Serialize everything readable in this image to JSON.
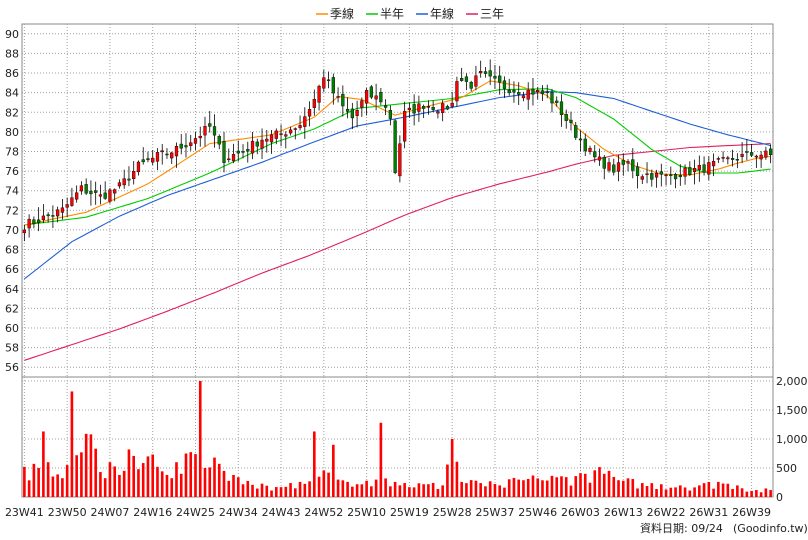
{
  "colors": {
    "up": "#ff0000",
    "down": "#008000",
    "wick": "#000000",
    "ma_quarter": "#ff8c00",
    "ma_half": "#00cc00",
    "ma_year": "#1f5fd6",
    "ma_3year": "#e0205a",
    "volume": "#ff0000",
    "grid": "#a0a0a0",
    "frame": "#888888"
  },
  "footer": {
    "date_label": "資料日期: 09/24",
    "source": "(Goodinfo.tw)"
  },
  "chart_data": {
    "type": "candlestick",
    "legend": [
      {
        "name": "季線",
        "color": "#ff8c00"
      },
      {
        "name": "半年",
        "color": "#00cc00"
      },
      {
        "name": "年線",
        "color": "#1f5fd6"
      },
      {
        "name": "三年",
        "color": "#e0205a"
      }
    ],
    "legend_position": "top-center",
    "price_axis": {
      "ylim": [
        55,
        91
      ],
      "ticks": [
        56,
        58,
        60,
        62,
        64,
        66,
        68,
        70,
        72,
        74,
        76,
        78,
        80,
        82,
        84,
        86,
        88,
        90
      ],
      "side": "left"
    },
    "volume_axis": {
      "ylim": [
        0,
        2000
      ],
      "ticks": [
        0,
        500,
        1000,
        1500,
        2000
      ],
      "tick_labels": [
        "0",
        "500",
        "1,000",
        "1,500",
        "2,000"
      ],
      "side": "right"
    },
    "x_axis": {
      "ticks": [
        "23W41",
        "23W50",
        "24W07",
        "24W16",
        "24W25",
        "24W34",
        "24W43",
        "24W52",
        "25W10",
        "25W19",
        "25W28",
        "25W37",
        "25W46",
        "26W03",
        "26W13",
        "26W22",
        "26W31",
        "26W39"
      ],
      "tick_every": 9,
      "total_weeks": 158
    },
    "close_keypoints": [
      [
        0,
        70.5
      ],
      [
        4,
        71.2
      ],
      [
        8,
        72
      ],
      [
        12,
        74.2
      ],
      [
        16,
        73.4
      ],
      [
        20,
        74.4
      ],
      [
        24,
        76.5
      ],
      [
        28,
        77.5
      ],
      [
        32,
        78.2
      ],
      [
        36,
        79.4
      ],
      [
        39,
        80.5
      ],
      [
        42,
        77.3
      ],
      [
        46,
        78
      ],
      [
        50,
        79.3
      ],
      [
        54,
        79.8
      ],
      [
        58,
        80.8
      ],
      [
        61,
        83.3
      ],
      [
        63,
        85.8
      ],
      [
        65,
        84
      ],
      [
        67,
        82.5
      ],
      [
        69,
        81.4
      ],
      [
        72,
        83.8
      ],
      [
        75,
        83.3
      ],
      [
        77,
        81.5
      ],
      [
        78,
        76
      ],
      [
        80,
        81.8
      ],
      [
        84,
        82.8
      ],
      [
        88,
        82.4
      ],
      [
        90,
        82.8
      ],
      [
        91,
        85.5
      ],
      [
        94,
        84.8
      ],
      [
        96,
        85.8
      ],
      [
        100,
        84.8
      ],
      [
        103,
        84.3
      ],
      [
        107,
        84.1
      ],
      [
        110,
        83.8
      ],
      [
        113,
        82
      ],
      [
        116,
        79.8
      ],
      [
        120,
        77.3
      ],
      [
        124,
        76.2
      ],
      [
        127,
        76.8
      ],
      [
        129,
        75.8
      ],
      [
        132,
        75.6
      ],
      [
        135,
        75.4
      ],
      [
        138,
        75.8
      ],
      [
        142,
        76.2
      ],
      [
        146,
        76.8
      ],
      [
        150,
        77.4
      ],
      [
        154,
        77.8
      ],
      [
        157,
        77.6
      ]
    ],
    "ma_quarter_keypoints": [
      [
        0,
        70.5
      ],
      [
        13,
        71.8
      ],
      [
        26,
        74.7
      ],
      [
        39,
        78.8
      ],
      [
        52,
        79.7
      ],
      [
        61,
        81.5
      ],
      [
        66,
        83.6
      ],
      [
        71,
        83.3
      ],
      [
        78,
        81.7
      ],
      [
        84,
        82.5
      ],
      [
        92,
        83.5
      ],
      [
        98,
        85.2
      ],
      [
        104,
        84.7
      ],
      [
        110,
        83.7
      ],
      [
        116,
        80.5
      ],
      [
        122,
        78.2
      ],
      [
        128,
        76.6
      ],
      [
        134,
        75.7
      ],
      [
        140,
        75.6
      ],
      [
        146,
        76.2
      ],
      [
        150,
        76.8
      ],
      [
        154,
        77.3
      ],
      [
        157,
        77.5
      ]
    ],
    "ma_half_keypoints": [
      [
        0,
        70.5
      ],
      [
        13,
        71.3
      ],
      [
        26,
        73.2
      ],
      [
        39,
        75.8
      ],
      [
        52,
        78.8
      ],
      [
        61,
        80.3
      ],
      [
        70,
        82.4
      ],
      [
        80,
        82.9
      ],
      [
        90,
        83.4
      ],
      [
        100,
        84.3
      ],
      [
        110,
        84.4
      ],
      [
        116,
        83.5
      ],
      [
        124,
        81.3
      ],
      [
        132,
        78.2
      ],
      [
        138,
        76.5
      ],
      [
        144,
        75.8
      ],
      [
        150,
        75.8
      ],
      [
        157,
        76.2
      ]
    ],
    "ma_year_keypoints": [
      [
        0,
        65
      ],
      [
        10,
        68.8
      ],
      [
        20,
        71.4
      ],
      [
        30,
        73.5
      ],
      [
        40,
        75.2
      ],
      [
        50,
        76.9
      ],
      [
        60,
        78.8
      ],
      [
        70,
        80.6
      ],
      [
        80,
        81.5
      ],
      [
        90,
        82.5
      ],
      [
        100,
        83.5
      ],
      [
        110,
        84.1
      ],
      [
        116,
        84
      ],
      [
        124,
        83.4
      ],
      [
        132,
        82.1
      ],
      [
        140,
        80.8
      ],
      [
        148,
        79.7
      ],
      [
        157,
        78.6
      ]
    ],
    "ma_3year_keypoints": [
      [
        0,
        56.7
      ],
      [
        10,
        58.3
      ],
      [
        20,
        59.9
      ],
      [
        30,
        61.7
      ],
      [
        40,
        63.6
      ],
      [
        50,
        65.6
      ],
      [
        60,
        67.4
      ],
      [
        70,
        69.4
      ],
      [
        80,
        71.5
      ],
      [
        90,
        73.3
      ],
      [
        100,
        74.7
      ],
      [
        110,
        75.9
      ],
      [
        116,
        76.7
      ],
      [
        124,
        77.6
      ],
      [
        132,
        78
      ],
      [
        140,
        78.4
      ],
      [
        148,
        78.6
      ],
      [
        157,
        78.8
      ]
    ],
    "volume_keypoints": [
      [
        0,
        520
      ],
      [
        3,
        500
      ],
      [
        4,
        1130
      ],
      [
        5,
        600
      ],
      [
        9,
        550
      ],
      [
        10,
        1820
      ],
      [
        11,
        720
      ],
      [
        14,
        1080
      ],
      [
        16,
        430
      ],
      [
        18,
        600
      ],
      [
        20,
        380
      ],
      [
        22,
        820
      ],
      [
        24,
        480
      ],
      [
        26,
        700
      ],
      [
        28,
        520
      ],
      [
        30,
        380
      ],
      [
        32,
        600
      ],
      [
        33,
        400
      ],
      [
        34,
        750
      ],
      [
        36,
        740
      ],
      [
        37,
        2000
      ],
      [
        38,
        500
      ],
      [
        40,
        680
      ],
      [
        42,
        450
      ],
      [
        44,
        380
      ],
      [
        46,
        220
      ],
      [
        50,
        230
      ],
      [
        54,
        170
      ],
      [
        56,
        240
      ],
      [
        58,
        260
      ],
      [
        60,
        270
      ],
      [
        61,
        1130
      ],
      [
        62,
        350
      ],
      [
        64,
        420
      ],
      [
        65,
        900
      ],
      [
        66,
        300
      ],
      [
        68,
        260
      ],
      [
        70,
        220
      ],
      [
        72,
        280
      ],
      [
        74,
        300
      ],
      [
        75,
        1280
      ],
      [
        76,
        320
      ],
      [
        78,
        260
      ],
      [
        80,
        240
      ],
      [
        84,
        220
      ],
      [
        88,
        200
      ],
      [
        90,
        1000
      ],
      [
        92,
        260
      ],
      [
        96,
        240
      ],
      [
        100,
        200
      ],
      [
        104,
        300
      ],
      [
        108,
        320
      ],
      [
        112,
        340
      ],
      [
        116,
        360
      ],
      [
        118,
        400
      ],
      [
        120,
        460
      ],
      [
        122,
        400
      ],
      [
        126,
        280
      ],
      [
        130,
        240
      ],
      [
        134,
        220
      ],
      [
        138,
        200
      ],
      [
        142,
        200
      ],
      [
        146,
        260
      ],
      [
        150,
        200
      ],
      [
        154,
        120
      ],
      [
        157,
        120
      ]
    ]
  }
}
